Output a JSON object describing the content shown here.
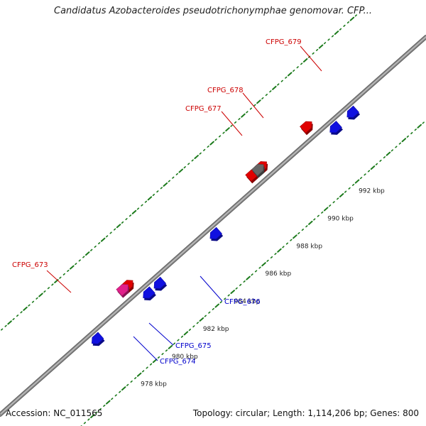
{
  "title": "Candidatus Azobacteroides pseudotrichonymphae genomovar. CFP...",
  "footer": {
    "accession": "Accession: NC_011565",
    "summary": "Topology: circular; Length: 1,114,206 bp; Genes: 800"
  },
  "colors": {
    "forward_gene": "#e00000",
    "reverse_gene": "#1010e0",
    "highlight_gene": "#e0208a",
    "other_gene": "#666666",
    "backbone": "#8c8c8c",
    "tick": "#1b7a1b",
    "label_red": "#cc0000",
    "label_blue": "#0000cc"
  },
  "chart_data": {
    "type": "genome-map",
    "scale_labels": [
      {
        "kbp": 978,
        "text": "978 kbp"
      },
      {
        "kbp": 980,
        "text": "980 kbp"
      },
      {
        "kbp": 982,
        "text": "982 kbp"
      },
      {
        "kbp": 984,
        "text": "984 kbp"
      },
      {
        "kbp": 986,
        "text": "986 kbp"
      },
      {
        "kbp": 988,
        "text": "988 kbp"
      },
      {
        "kbp": 990,
        "text": "990 kbp"
      },
      {
        "kbp": 992,
        "text": "992 kbp"
      }
    ],
    "genes": [
      {
        "id": "g1",
        "kbp": 977.6,
        "strand": "reverse",
        "kind": "reverse_gene"
      },
      {
        "id": "g2",
        "kbp": 980.9,
        "strand": "reverse",
        "kind": "reverse_gene"
      },
      {
        "id": "g3",
        "kbp": 981.6,
        "strand": "reverse",
        "kind": "reverse_gene"
      },
      {
        "id": "g4",
        "kbp": 980.4,
        "strand": "forward",
        "kind": "forward_gene"
      },
      {
        "id": "g5",
        "kbp": 980.1,
        "strand": "forward",
        "kind": "highlight_gene"
      },
      {
        "id": "g6",
        "kbp": 985.2,
        "strand": "reverse",
        "kind": "reverse_gene"
      },
      {
        "id": "g7",
        "kbp": 988.4,
        "strand": "forward",
        "kind": "forward_gene"
      },
      {
        "id": "g8",
        "kbp": 989.0,
        "strand": "forward",
        "kind": "forward_gene"
      },
      {
        "id": "g9",
        "kbp": 988.8,
        "strand": "forward",
        "kind": "other_gene"
      },
      {
        "id": "g10",
        "kbp": 991.9,
        "strand": "forward",
        "kind": "forward_gene"
      },
      {
        "id": "g11",
        "kbp": 992.9,
        "strand": "reverse",
        "kind": "reverse_gene"
      },
      {
        "id": "g12",
        "kbp": 994.0,
        "strand": "reverse",
        "kind": "reverse_gene"
      }
    ],
    "gene_labels": [
      {
        "text": "CFPG_673",
        "color_key": "label_red"
      },
      {
        "text": "CFPG_674",
        "color_key": "label_blue"
      },
      {
        "text": "CFPG_675",
        "color_key": "label_blue"
      },
      {
        "text": "CFPG_676",
        "color_key": "label_blue"
      },
      {
        "text": "CFPG_677",
        "color_key": "label_red"
      },
      {
        "text": "CFPG_678",
        "color_key": "label_red"
      },
      {
        "text": "CFPG_679",
        "color_key": "label_red"
      }
    ]
  }
}
